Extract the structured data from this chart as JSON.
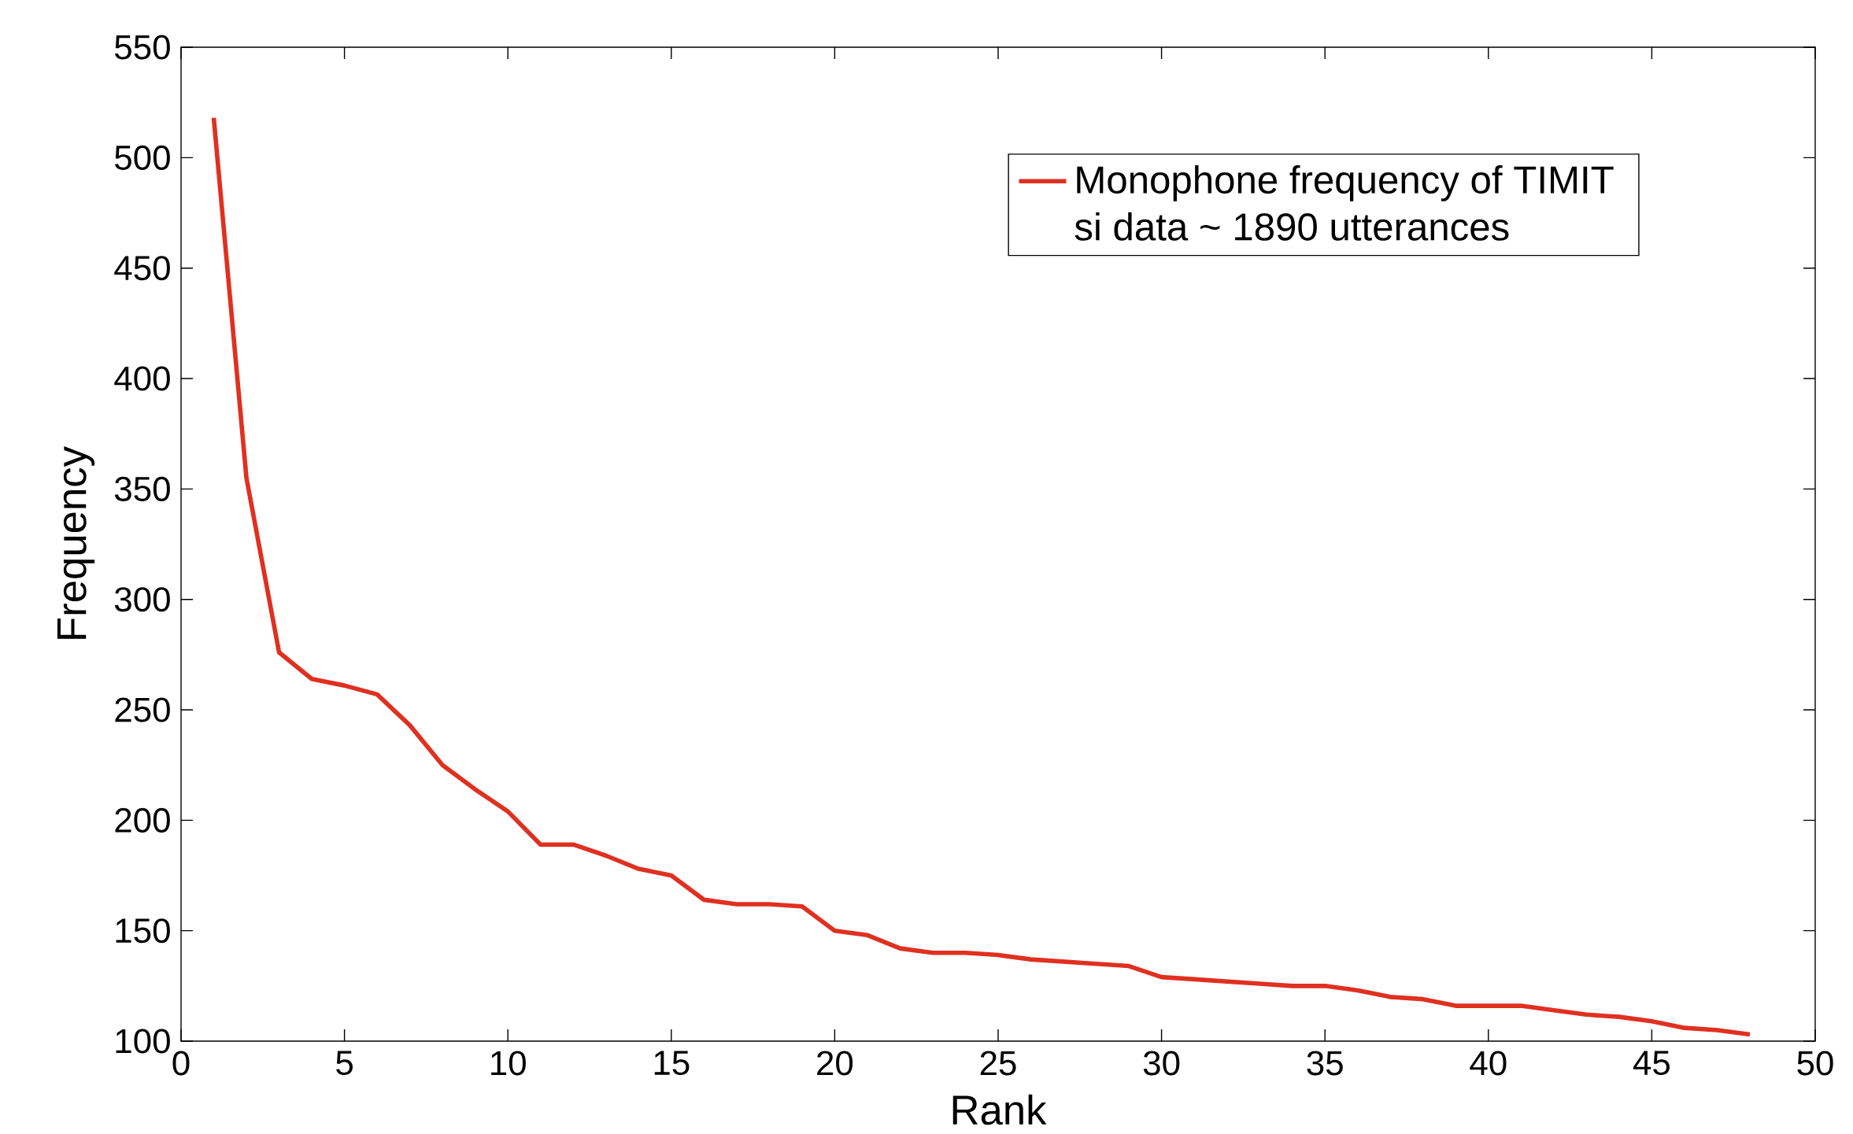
{
  "chart_data": {
    "type": "line",
    "xlabel": "Rank",
    "ylabel": "Frequency",
    "x": [
      1,
      2,
      3,
      4,
      5,
      6,
      7,
      8,
      9,
      10,
      11,
      12,
      13,
      14,
      15,
      16,
      17,
      18,
      19,
      20,
      21,
      22,
      23,
      24,
      25,
      26,
      27,
      28,
      29,
      30,
      31,
      32,
      33,
      34,
      35,
      36,
      37,
      38,
      39,
      40,
      41,
      42,
      43,
      44,
      45,
      46,
      47,
      48
    ],
    "series": [
      {
        "name": "Monophone frequency of TIMIT si data ~ 1890 utterances",
        "color": "#e03020",
        "values": [
          518,
          355,
          276,
          264,
          261,
          257,
          243,
          225,
          214,
          204,
          189,
          189,
          184,
          178,
          175,
          164,
          162,
          162,
          161,
          150,
          148,
          142,
          140,
          140,
          139,
          137,
          136,
          135,
          134,
          129,
          128,
          127,
          126,
          125,
          125,
          123,
          120,
          119,
          116,
          116,
          116,
          114,
          112,
          111,
          109,
          106,
          105,
          103
        ]
      }
    ],
    "xlim": [
      0,
      50
    ],
    "ylim": [
      100,
      550
    ],
    "xticks": [
      0,
      5,
      10,
      15,
      20,
      25,
      30,
      35,
      40,
      45,
      50
    ],
    "yticks": [
      100,
      150,
      200,
      250,
      300,
      350,
      400,
      450,
      500,
      550
    ],
    "grid": false,
    "legend": "top right",
    "marker": "none",
    "line_style": "solid"
  }
}
